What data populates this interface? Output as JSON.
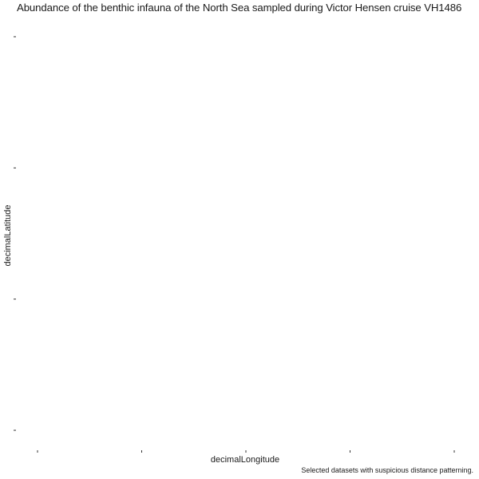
{
  "chart_data": {
    "type": "scatter",
    "title": "Abundance of the benthic infauna of the North Sea sampled during Victor Hensen cruise VH1486",
    "xlabel": "decimalLongitude",
    "ylabel": "decimalLatitude",
    "caption": "Selected datasets with suspicious distance patterning.",
    "x_ticks": 5,
    "y_ticks": 4,
    "x": [],
    "y": [],
    "grid": false
  }
}
